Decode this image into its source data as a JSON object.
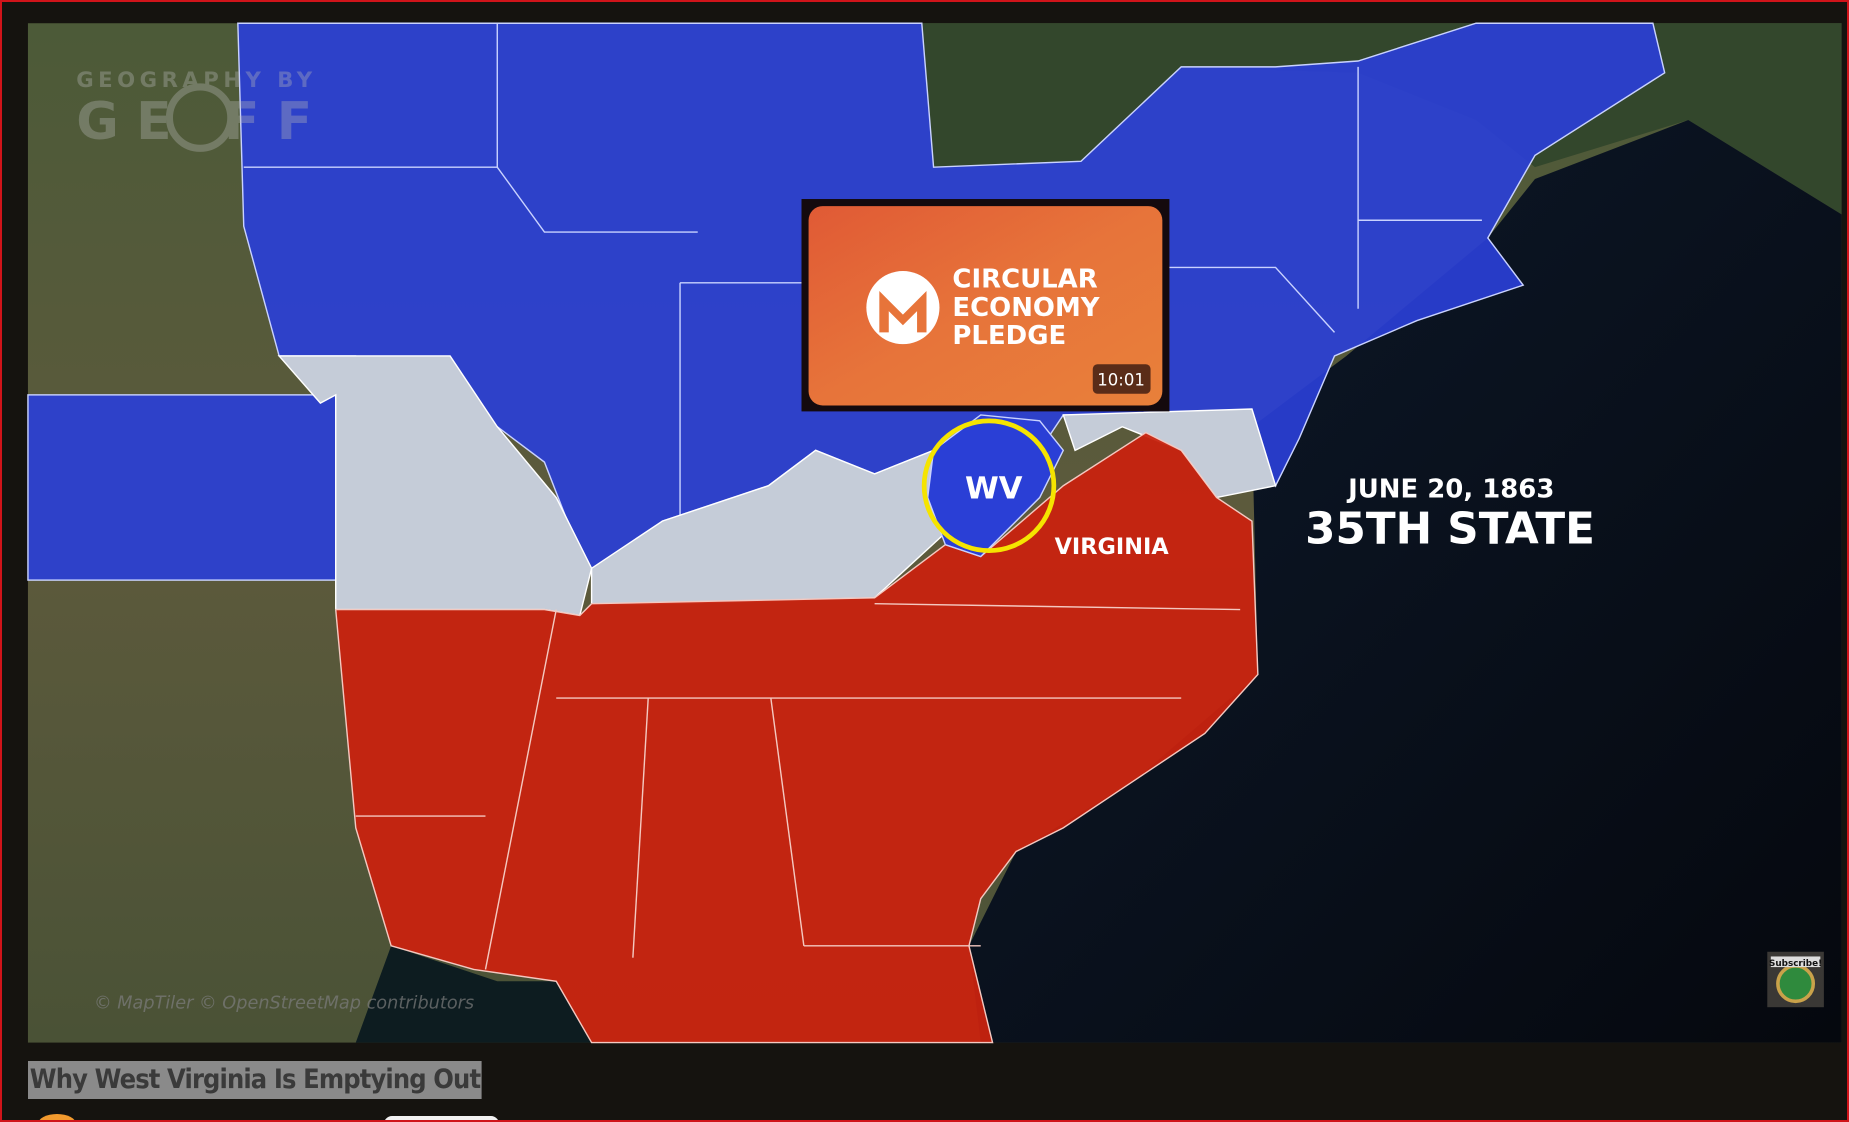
{
  "video": {
    "title": "Why West Virginia Is Emptying Out",
    "watermark": "GEOGRAPHY BY GEOFF",
    "attribution": "© MapTiler © OpenStreetMap contributors",
    "map_labels": {
      "circle_label": "WV",
      "state_label": "VIRGINIA",
      "date": "JUNE 20, 1863",
      "headline": "35TH STATE"
    },
    "colors": {
      "union": "#2a3fd6",
      "confederate": "#c8230f",
      "border_states": "#c5ccd8",
      "highlight_circle": "#f5e400",
      "frame_border": "#d0141a"
    }
  },
  "end_card": {
    "logo": "monero-icon",
    "lines": [
      "CIRCULAR",
      "ECONOMY",
      "PLEDGE"
    ],
    "duration": "10:01"
  },
  "subscribe_badge": {
    "label": "Subscribe!",
    "icon": "globe-icon"
  }
}
